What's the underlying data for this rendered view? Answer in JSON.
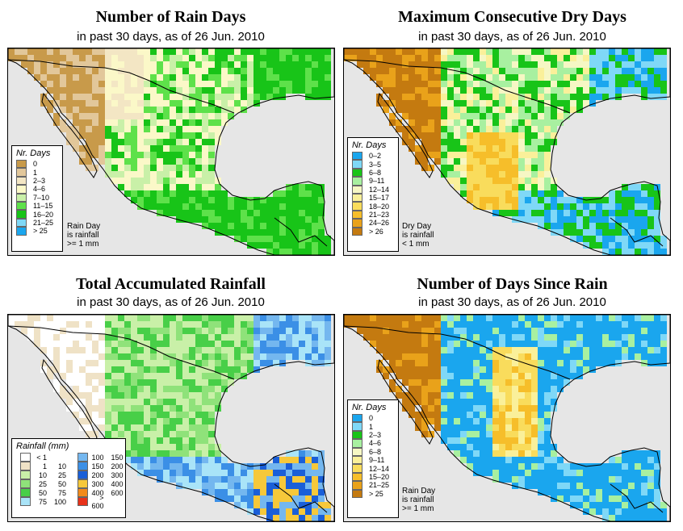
{
  "panels": [
    {
      "title": "Number of Rain Days",
      "subtitle": "in past 30 days, as of  26 Jun. 2010",
      "legend_title": "Nr. Days",
      "legend": [
        {
          "label": "0",
          "color": "#c89a4a"
        },
        {
          "label": "1",
          "color": "#e2c79a"
        },
        {
          "label": "2–3",
          "color": "#f3e6c4"
        },
        {
          "label": "4–6",
          "color": "#fbf8c8"
        },
        {
          "label": "7–10",
          "color": "#c9f0a8"
        },
        {
          "label": "11–15",
          "color": "#5ee14a"
        },
        {
          "label": "16–20",
          "color": "#18c418"
        },
        {
          "label": "21–25",
          "color": "#7fd8f7"
        },
        {
          "label": "> 25",
          "color": "#1aa6ee"
        }
      ],
      "note": [
        "Rain Day",
        "is rainfall",
        ">= 1 mm"
      ]
    },
    {
      "title": "Maximum Consecutive Dry Days",
      "subtitle": "in past 30 days, as of  26 Jun. 2010",
      "legend_title": "Nr. Days",
      "legend": [
        {
          "label": "0–2",
          "color": "#1aa6ee"
        },
        {
          "label": "3–5",
          "color": "#7fd8f7"
        },
        {
          "label": "6–8",
          "color": "#18c418"
        },
        {
          "label": "9–11",
          "color": "#a8f0a0"
        },
        {
          "label": "12–14",
          "color": "#f6f7c4"
        },
        {
          "label": "15–17",
          "color": "#faf09a"
        },
        {
          "label": "18–20",
          "color": "#f9dc5c"
        },
        {
          "label": "21–23",
          "color": "#f6be2a"
        },
        {
          "label": "24–26",
          "color": "#e9a21a"
        },
        {
          "label": "> 26",
          "color": "#c47a10"
        }
      ],
      "note": [
        "Dry Day",
        "is rainfall",
        "< 1 mm"
      ]
    },
    {
      "title": "Total Accumulated Rainfall",
      "subtitle": "in past 30 days, as of  26 Jun. 2010",
      "legend_title": "Rainfall (mm)",
      "legend_left": [
        {
          "lo": "< 1",
          "hi": "",
          "color": "#ffffff"
        },
        {
          "lo": "1",
          "hi": "10",
          "color": "#efe2c6"
        },
        {
          "lo": "10",
          "hi": "25",
          "color": "#c9f0a8"
        },
        {
          "lo": "25",
          "hi": "50",
          "color": "#8fe27a"
        },
        {
          "lo": "50",
          "hi": "75",
          "color": "#48cf48"
        },
        {
          "lo": "75",
          "hi": "100",
          "color": "#a9e4f8"
        }
      ],
      "legend_right": [
        {
          "lo": "100",
          "hi": "150",
          "color": "#74b7ef"
        },
        {
          "lo": "150",
          "hi": "200",
          "color": "#3b8fe6"
        },
        {
          "lo": "200",
          "hi": "300",
          "color": "#1a5fd8"
        },
        {
          "lo": "300",
          "hi": "400",
          "color": "#f6c83a"
        },
        {
          "lo": "400",
          "hi": "600",
          "color": "#f28a1a"
        },
        {
          "lo": "> 600",
          "hi": "",
          "color": "#e8321a"
        }
      ]
    },
    {
      "title": "Number of Days Since Rain",
      "subtitle": "in past 30 days, as of  26 Jun. 2010",
      "legend_title": "Nr. Days",
      "legend": [
        {
          "label": "0",
          "color": "#1aa6ee"
        },
        {
          "label": "1",
          "color": "#7fd8f7"
        },
        {
          "label": "2–3",
          "color": "#18c418"
        },
        {
          "label": "4–6",
          "color": "#a8f0a0"
        },
        {
          "label": "6–8",
          "color": "#f6f7c4"
        },
        {
          "label": "9–11",
          "color": "#faf09a"
        },
        {
          "label": "12–14",
          "color": "#f9dc5c"
        },
        {
          "label": "15–20",
          "color": "#f6be2a"
        },
        {
          "label": "21–25",
          "color": "#e9a21a"
        },
        {
          "label": "> 25",
          "color": "#c47a10"
        }
      ],
      "note": [
        "Rain Day",
        "is rainfall",
        ">= 1 mm"
      ]
    }
  ],
  "map_colors": {
    "ocean": "#e6e6e6",
    "border": "#000000"
  }
}
